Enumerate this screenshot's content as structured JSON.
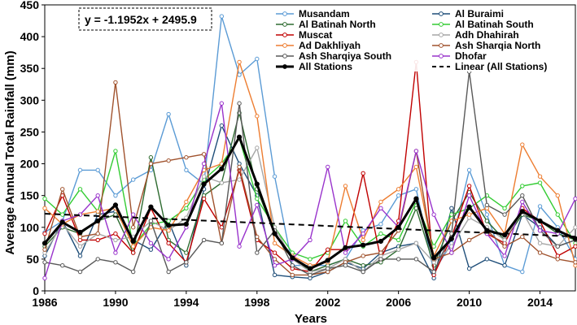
{
  "chart_data": {
    "type": "line",
    "title": "",
    "xlabel": "Years",
    "ylabel": "Average Annual Total Rainfall (mm)",
    "xlim": [
      1986,
      2016
    ],
    "ylim": [
      0,
      450
    ],
    "x_ticks": [
      1986,
      1990,
      1994,
      1998,
      2002,
      2006,
      2010,
      2014
    ],
    "y_ticks": [
      0,
      50,
      100,
      150,
      200,
      250,
      300,
      350,
      400,
      450
    ],
    "grid": "none",
    "legend_position": "top-right",
    "annotation": "y = -1.1952x + 2495.9",
    "x": [
      1986,
      1987,
      1988,
      1989,
      1990,
      1991,
      1992,
      1993,
      1994,
      1995,
      1996,
      1997,
      1998,
      1999,
      2000,
      2001,
      2002,
      2003,
      2004,
      2005,
      2006,
      2007,
      2008,
      2009,
      2010,
      2011,
      2012,
      2013,
      2014,
      2015,
      2016
    ],
    "series": [
      {
        "name": "Musandam",
        "color": "#5b9bd5",
        "dashed": false,
        "bold": false,
        "values": [
          92,
          110,
          190,
          190,
          150,
          175,
          190,
          278,
          190,
          168,
          432,
          340,
          365,
          180,
          40,
          40,
          40,
          50,
          95,
          105,
          150,
          160,
          30,
          75,
          190,
          120,
          40,
          30,
          133,
          100,
          50
        ]
      },
      {
        "name": "Al Buraimi",
        "color": "#1f4e79",
        "dashed": false,
        "bold": false,
        "values": [
          55,
          110,
          55,
          120,
          125,
          80,
          65,
          110,
          40,
          160,
          260,
          200,
          150,
          25,
          22,
          20,
          30,
          45,
          35,
          60,
          70,
          75,
          20,
          130,
          35,
          50,
          40,
          120,
          100,
          70,
          80
        ]
      },
      {
        "name": "Al Batinah North",
        "color": "#2e6b30",
        "dashed": false,
        "bold": false,
        "values": [
          70,
          100,
          90,
          110,
          120,
          60,
          210,
          80,
          60,
          150,
          170,
          280,
          160,
          90,
          55,
          30,
          40,
          50,
          40,
          45,
          65,
          130,
          40,
          110,
          155,
          110,
          80,
          120,
          110,
          90,
          80
        ]
      },
      {
        "name": "Al Batinah South",
        "color": "#33cc33",
        "dashed": false,
        "bold": false,
        "values": [
          145,
          120,
          160,
          125,
          220,
          70,
          105,
          110,
          130,
          175,
          200,
          240,
          145,
          100,
          60,
          50,
          60,
          110,
          70,
          90,
          80,
          140,
          70,
          120,
          130,
          150,
          130,
          165,
          170,
          120,
          75
        ]
      },
      {
        "name": "Muscat",
        "color": "#c00000",
        "dashed": false,
        "bold": false,
        "values": [
          90,
          150,
          80,
          80,
          90,
          60,
          130,
          75,
          45,
          145,
          100,
          190,
          80,
          60,
          35,
          30,
          65,
          65,
          185,
          50,
          110,
          360,
          25,
          85,
          165,
          90,
          75,
          130,
          110,
          55,
          70
        ]
      },
      {
        "name": "Adh Dhahirah",
        "color": "#a6a6a6",
        "dashed": false,
        "bold": false,
        "values": [
          60,
          105,
          70,
          90,
          80,
          85,
          110,
          95,
          115,
          180,
          170,
          175,
          225,
          100,
          50,
          30,
          35,
          50,
          30,
          55,
          65,
          75,
          45,
          70,
          115,
          100,
          80,
          125,
          75,
          70,
          100
        ]
      },
      {
        "name": "Ad Dakhliyah",
        "color": "#ed7d31",
        "dashed": false,
        "bold": false,
        "values": [
          130,
          105,
          120,
          125,
          130,
          70,
          100,
          95,
          140,
          190,
          200,
          360,
          275,
          75,
          55,
          40,
          45,
          165,
          80,
          140,
          160,
          195,
          55,
          110,
          120,
          130,
          90,
          230,
          180,
          150,
          40
        ]
      },
      {
        "name": "Ash Sharqia North",
        "color": "#a0522d",
        "dashed": false,
        "bold": false,
        "values": [
          65,
          160,
          85,
          90,
          328,
          100,
          200,
          205,
          210,
          215,
          75,
          195,
          85,
          50,
          25,
          25,
          30,
          45,
          55,
          60,
          95,
          220,
          50,
          60,
          80,
          95,
          70,
          85,
          60,
          50,
          45
        ]
      },
      {
        "name": "Ash Sharqiya South",
        "color": "#595959",
        "dashed": false,
        "bold": false,
        "values": [
          45,
          40,
          30,
          50,
          45,
          30,
          110,
          30,
          45,
          80,
          75,
          295,
          60,
          95,
          40,
          25,
          35,
          40,
          30,
          50,
          50,
          50,
          30,
          90,
          345,
          135,
          120,
          150,
          95,
          70,
          80
        ]
      },
      {
        "name": "Dhofar",
        "color": "#9933cc",
        "dashed": false,
        "bold": false,
        "values": [
          20,
          110,
          120,
          150,
          60,
          120,
          75,
          50,
          100,
          200,
          295,
          70,
          135,
          40,
          50,
          80,
          195,
          60,
          90,
          130,
          100,
          220,
          120,
          60,
          150,
          90,
          55,
          140,
          95,
          90,
          145
        ]
      },
      {
        "name": "All Stations",
        "color": "#000000",
        "dashed": false,
        "bold": true,
        "values": [
          75,
          108,
          92,
          110,
          135,
          78,
          132,
          103,
          105,
          168,
          192,
          242,
          168,
          90,
          52,
          35,
          48,
          68,
          72,
          78,
          100,
          145,
          52,
          82,
          132,
          95,
          88,
          125,
          110,
          95,
          82
        ]
      },
      {
        "name": "Linear (All Stations)",
        "color": "#000000",
        "dashed": true,
        "bold": false,
        "trend": true,
        "values": [
          121.4,
          120.2,
          119.0,
          117.8,
          116.6,
          115.4,
          114.2,
          113.0,
          111.8,
          110.6,
          109.4,
          108.2,
          107.0,
          105.8,
          104.6,
          103.4,
          102.2,
          101.0,
          99.8,
          98.6,
          97.4,
          96.2,
          95.0,
          93.8,
          92.6,
          91.4,
          90.2,
          89.0,
          87.8,
          86.6,
          85.4
        ]
      }
    ]
  }
}
